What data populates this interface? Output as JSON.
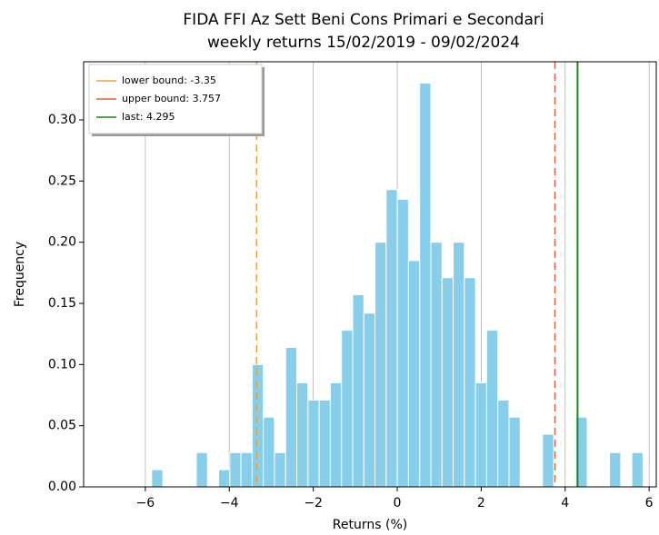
{
  "chart_data": {
    "type": "histogram",
    "title": "FIDA FFI Az Sett Beni Cons Primari e Secondari",
    "subtitle": "weekly returns 15/02/2019 - 09/02/2024",
    "x_label": "Returns (%)",
    "y_label": "Frequency",
    "color": "#87ceeb",
    "bins": [
      -5.85,
      -5.584,
      -5.318,
      -5.052,
      -4.786,
      -4.52,
      -4.254,
      -3.988,
      -3.722,
      -3.456,
      -3.19,
      -2.924,
      -2.658,
      -2.392,
      -2.126,
      -1.86,
      -1.594,
      -1.328,
      -1.062,
      -0.796,
      -0.53,
      -0.264,
      0.002,
      0.268,
      0.534,
      0.8,
      1.066,
      1.332,
      1.598,
      1.864,
      2.13,
      2.396,
      2.662,
      2.928,
      3.194,
      3.46,
      3.726,
      3.992,
      4.258,
      4.524,
      4.79,
      5.056,
      5.322,
      5.588,
      5.854
    ],
    "values": [
      0.014,
      0,
      0,
      0,
      0.028,
      0,
      0.014,
      0.028,
      0.028,
      0.1,
      0.057,
      0.028,
      0.114,
      0.085,
      0.071,
      0.071,
      0.085,
      0.128,
      0.157,
      0.142,
      0.2,
      0.243,
      0.235,
      0.185,
      0.33,
      0.2,
      0.171,
      0.2,
      0.171,
      0.085,
      0.128,
      0.071,
      0.057,
      0,
      0,
      0.043,
      0,
      0,
      0.057,
      0,
      0,
      0.028,
      0,
      0.028
    ],
    "vlines": [
      {
        "name": "lower bound: -3.35",
        "value": -3.35,
        "color": "#f0a030"
      },
      {
        "name": "upper bound: 3.757",
        "value": 3.757,
        "color": "#e8602c"
      },
      {
        "name": "last: 4.295",
        "value": 4.295,
        "color": "#1a8a1a"
      }
    ],
    "xlim": [
      -7.47,
      6.17
    ],
    "ylim": [
      0,
      0.3475
    ],
    "xticks": [
      {
        "value": -6,
        "label": "−6"
      },
      {
        "value": -4,
        "label": "−4"
      },
      {
        "value": -2,
        "label": "−2"
      },
      0,
      2,
      4,
      6
    ],
    "yticks": [
      {
        "value": 0,
        "label": "0.00"
      },
      {
        "value": 0.05,
        "label": "0.05"
      },
      {
        "value": 0.1,
        "label": "0.10"
      },
      {
        "value": 0.15,
        "label": "0.15"
      },
      {
        "value": 0.2,
        "label": "0.20"
      },
      {
        "value": 0.25,
        "label": "0.25"
      },
      {
        "value": 0.3,
        "label": "0.30"
      }
    ],
    "grid": "x",
    "legend": "upper left"
  }
}
